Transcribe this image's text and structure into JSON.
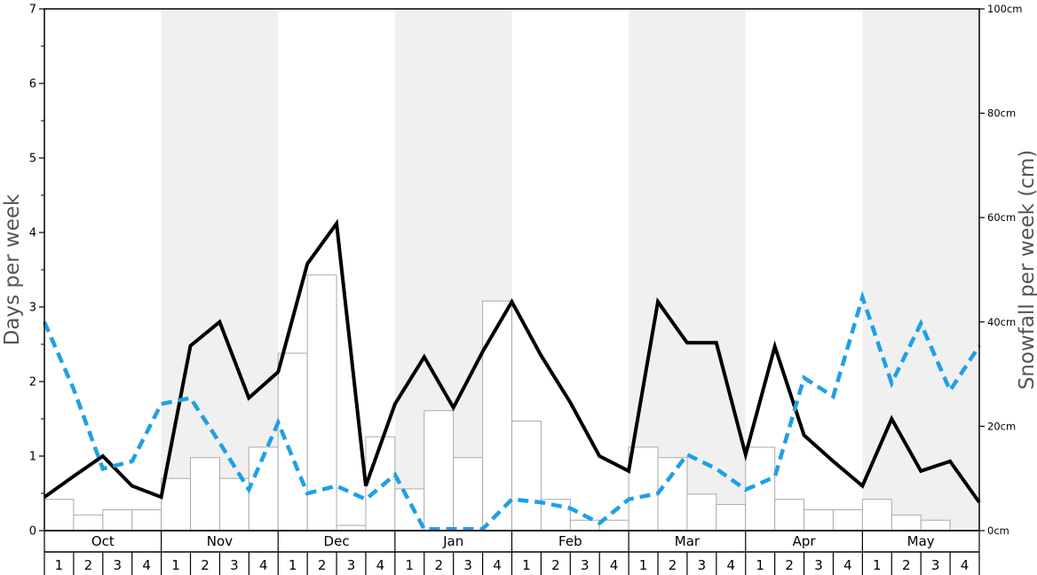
{
  "chart_data": {
    "type": "bar",
    "xlabel": "",
    "ylabel": "Days per week",
    "y2label": "Snowfall per week (cm)",
    "ylim": [
      0,
      7
    ],
    "y2lim": [
      0,
      100
    ],
    "y_ticks": [
      "0",
      "1",
      "2",
      "3",
      "4",
      "5",
      "6",
      "7"
    ],
    "y2_ticks": [
      "0cm",
      "20cm",
      "40cm",
      "60cm",
      "80cm",
      "100cm"
    ],
    "months": [
      "Oct",
      "Nov",
      "Dec",
      "Jan",
      "Feb",
      "Mar",
      "Apr",
      "May"
    ],
    "weeks": [
      "1",
      "2",
      "3",
      "4"
    ],
    "shaded_months": [
      "Nov",
      "Jan",
      "Mar",
      "May"
    ],
    "grid": false,
    "series": [
      {
        "kind": "bar",
        "axis": "right",
        "values": [
          6,
          3,
          4,
          4,
          10,
          14,
          10,
          16,
          34,
          49,
          1,
          18,
          8,
          23,
          14,
          44,
          21,
          6,
          2,
          2,
          16,
          14,
          7,
          5,
          16,
          6,
          4,
          4,
          6,
          3,
          2,
          0
        ]
      },
      {
        "kind": "line",
        "axis": "left",
        "style": "solid",
        "color": "#000000",
        "values": [
          0.45,
          0.73,
          1.0,
          0.6,
          0.45,
          2.48,
          2.8,
          1.78,
          2.13,
          3.58,
          4.12,
          0.6,
          1.7,
          2.33,
          1.65,
          2.4,
          3.07,
          2.35,
          1.72,
          1.0,
          0.8,
          3.07,
          2.52,
          2.52,
          1.02,
          2.47,
          1.28,
          0.93,
          0.6,
          1.5,
          0.8,
          0.93,
          0.38
        ]
      },
      {
        "kind": "line",
        "axis": "left",
        "style": "dashed",
        "color": "#1ea0e6",
        "values": [
          2.8,
          1.9,
          0.83,
          0.93,
          1.7,
          1.78,
          1.18,
          0.55,
          1.45,
          0.5,
          0.6,
          0.42,
          0.75,
          0.02,
          0.02,
          0.02,
          0.42,
          0.38,
          0.3,
          0.1,
          0.42,
          0.5,
          1.02,
          0.83,
          0.55,
          0.72,
          2.05,
          1.8,
          3.13,
          1.98,
          2.78,
          1.88,
          2.48
        ]
      }
    ]
  }
}
